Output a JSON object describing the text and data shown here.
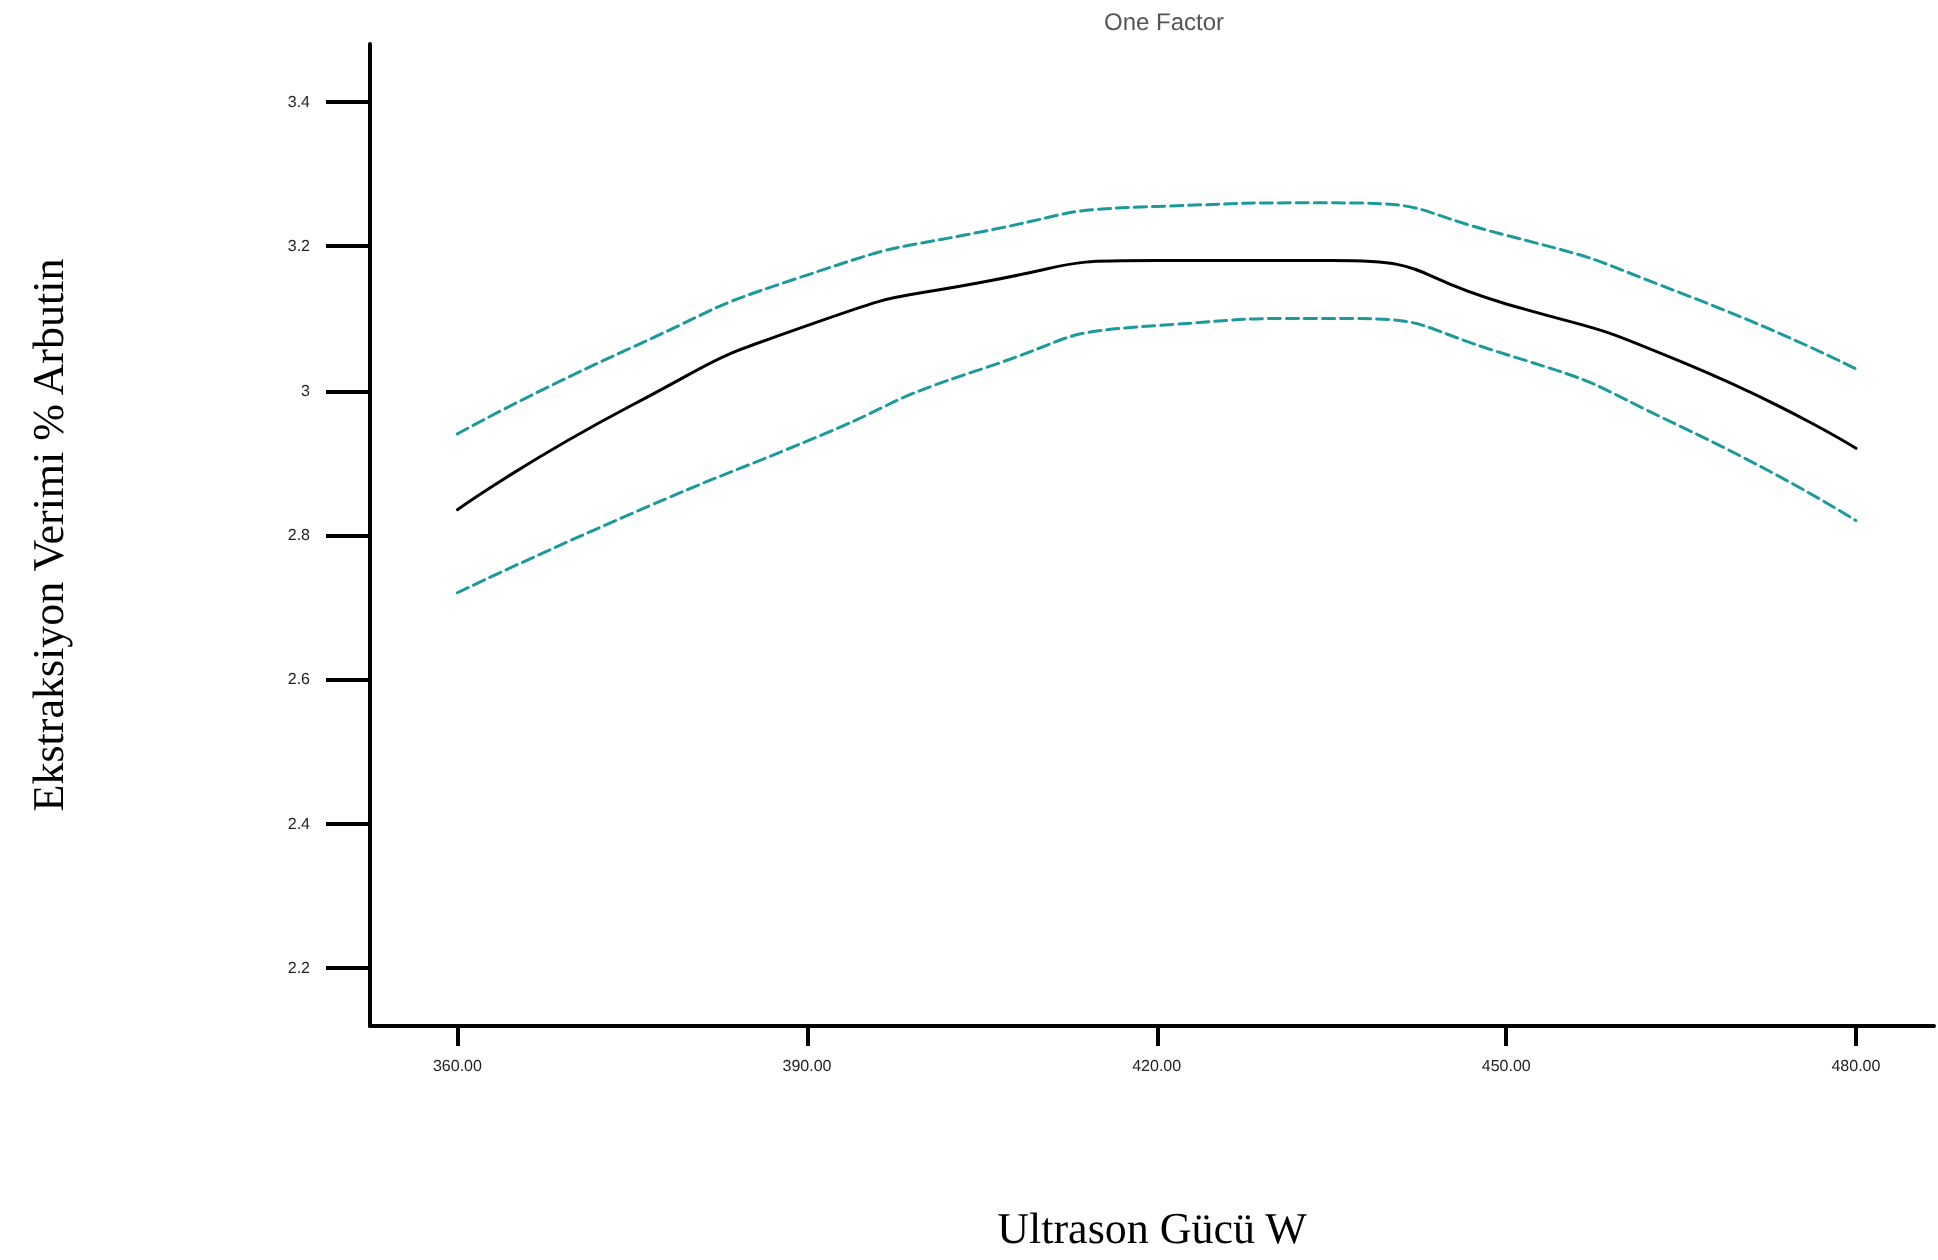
{
  "chart_data": {
    "type": "line",
    "title": "One Factor",
    "xlabel": "Ultrason Gücü W",
    "ylabel": "Ekstraksiyon Verimi % Arbutin",
    "x": [
      360,
      375,
      390,
      405,
      420,
      435,
      450,
      465,
      480
    ],
    "series": [
      {
        "color": "#000000",
        "line_style": "solid",
        "values": [
          2.835,
          2.98,
          3.09,
          3.15,
          3.18,
          3.18,
          3.12,
          3.04,
          2.92
        ]
      },
      {
        "color": "#1a9a9a",
        "line_style": "dashed",
        "values": [
          2.94,
          3.06,
          3.16,
          3.22,
          3.255,
          3.26,
          3.215,
          3.135,
          3.03
        ]
      },
      {
        "color": "#1a9a9a",
        "line_style": "dashed",
        "values": [
          2.72,
          2.83,
          2.93,
          3.03,
          3.09,
          3.1,
          3.05,
          2.95,
          2.82
        ]
      }
    ],
    "xlim": [
      352.5,
      486.7
    ],
    "xticks": [
      {
        "value": 360,
        "label": "360.00"
      },
      {
        "value": 390,
        "label": "390.00"
      },
      {
        "value": 420,
        "label": "420.00"
      },
      {
        "value": 450,
        "label": "450.00"
      },
      {
        "value": 480,
        "label": "480.00"
      }
    ],
    "ylim": [
      2.12,
      3.48
    ],
    "yticks": [
      2.2,
      2.4,
      2.6,
      2.8,
      3,
      3.2,
      3.4
    ],
    "grid": false,
    "marker": "none"
  }
}
